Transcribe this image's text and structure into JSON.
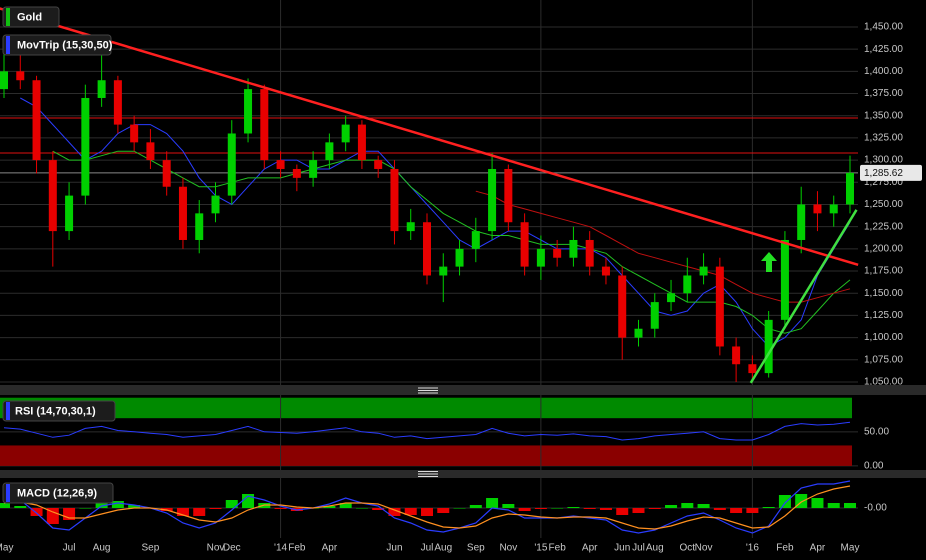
{
  "chart_data": [
    {
      "type": "candlestick",
      "label": "Gold",
      "ma_label": "MovTrip (15,30,50)",
      "open": [
        1380,
        1400,
        1390,
        1300,
        1220,
        1260,
        1370,
        1390,
        1340,
        1320,
        1300,
        1270,
        1210,
        1240,
        1260,
        1330,
        1380,
        1300,
        1290,
        1280,
        1300,
        1320,
        1340,
        1300,
        1290,
        1220,
        1230,
        1170,
        1180,
        1200,
        1220,
        1290,
        1230,
        1180,
        1200,
        1190,
        1210,
        1180,
        1170,
        1100,
        1110,
        1140,
        1150,
        1170,
        1180,
        1090,
        1070,
        1060,
        1120,
        1210,
        1250,
        1240,
        1250
      ],
      "high": [
        1420,
        1430,
        1395,
        1310,
        1275,
        1385,
        1420,
        1395,
        1350,
        1335,
        1310,
        1280,
        1255,
        1275,
        1345,
        1392,
        1385,
        1310,
        1295,
        1310,
        1330,
        1350,
        1345,
        1305,
        1300,
        1245,
        1240,
        1195,
        1210,
        1235,
        1308,
        1295,
        1240,
        1215,
        1210,
        1225,
        1220,
        1190,
        1180,
        1120,
        1150,
        1165,
        1190,
        1195,
        1190,
        1100,
        1080,
        1130,
        1220,
        1270,
        1265,
        1260,
        1305
      ],
      "low": [
        1370,
        1380,
        1285,
        1180,
        1210,
        1250,
        1360,
        1330,
        1310,
        1290,
        1260,
        1200,
        1195,
        1230,
        1250,
        1320,
        1290,
        1280,
        1265,
        1270,
        1290,
        1310,
        1290,
        1280,
        1205,
        1210,
        1160,
        1140,
        1170,
        1185,
        1210,
        1220,
        1170,
        1165,
        1180,
        1180,
        1170,
        1160,
        1075,
        1090,
        1100,
        1130,
        1140,
        1160,
        1080,
        1050,
        1050,
        1055,
        1110,
        1195,
        1220,
        1225,
        1240
      ],
      "close": [
        1400,
        1390,
        1300,
        1220,
        1260,
        1370,
        1390,
        1340,
        1320,
        1300,
        1270,
        1210,
        1240,
        1260,
        1330,
        1380,
        1300,
        1290,
        1280,
        1300,
        1320,
        1340,
        1300,
        1290,
        1220,
        1230,
        1170,
        1180,
        1200,
        1220,
        1290,
        1230,
        1180,
        1200,
        1190,
        1210,
        1180,
        1170,
        1100,
        1110,
        1140,
        1150,
        1170,
        1180,
        1090,
        1070,
        1060,
        1120,
        1210,
        1250,
        1240,
        1250,
        1285.62
      ],
      "up_color": "#00d000",
      "down_color": "#e80000",
      "overlays": [
        {
          "color": "#2a3cff",
          "values": [
            null,
            1370,
            1360,
            1340,
            1320,
            1300,
            1310,
            1330,
            1340,
            1340,
            1330,
            1310,
            1280,
            1260,
            1250,
            1270,
            1290,
            1300,
            1300,
            1290,
            1290,
            1300,
            1310,
            1310,
            1290,
            1270,
            1250,
            1230,
            1210,
            1200,
            1210,
            1220,
            1220,
            1210,
            1200,
            1200,
            1200,
            1190,
            1170,
            1150,
            1130,
            1125,
            1130,
            1150,
            1160,
            1140,
            1110,
            1090,
            1100,
            1120,
            1170,
            1200,
            1230
          ]
        },
        {
          "color": "#22c022",
          "values": [
            null,
            null,
            null,
            1310,
            1300,
            1300,
            1305,
            1310,
            1310,
            1300,
            1290,
            1280,
            1270,
            1270,
            1275,
            1280,
            1280,
            1280,
            1285,
            1290,
            1295,
            1300,
            1300,
            1300,
            1290,
            1270,
            1255,
            1240,
            1230,
            1220,
            1215,
            1215,
            1210,
            1205,
            1205,
            1205,
            1200,
            1195,
            1180,
            1170,
            1160,
            1150,
            1140,
            1140,
            1140,
            1135,
            1125,
            1110,
            1105,
            1110,
            1130,
            1150,
            1165
          ]
        },
        {
          "color": "#c01010",
          "values": [
            null,
            null,
            null,
            null,
            null,
            null,
            null,
            null,
            null,
            null,
            null,
            null,
            null,
            null,
            null,
            null,
            null,
            null,
            null,
            null,
            null,
            null,
            null,
            null,
            null,
            null,
            null,
            null,
            null,
            1265,
            1260,
            1250,
            1245,
            1240,
            1235,
            1230,
            1225,
            1215,
            1205,
            1195,
            1190,
            1185,
            1180,
            1175,
            1170,
            1160,
            1150,
            1145,
            1140,
            1140,
            1145,
            1150,
            1155
          ]
        }
      ],
      "trendlines": [
        {
          "color": "#ff2020",
          "from": [
            -0.3,
            1471
          ],
          "to": [
            52.5,
            1182
          ]
        },
        {
          "color": "#40e040",
          "from": [
            45.9,
            1049
          ],
          "to": [
            52.4,
            1244
          ]
        }
      ],
      "hlines": [
        {
          "value": 1347.5,
          "color": "#e01010"
        },
        {
          "value": 1308,
          "color": "#e01010"
        }
      ],
      "last_price": {
        "value": 1285.62,
        "label": "1,285.62"
      },
      "ylim": [
        1046.6,
        1480.4
      ],
      "yticks": [
        {
          "value": 1050,
          "label": "1,050.00"
        },
        {
          "value": 1075,
          "label": "1,075.00"
        },
        {
          "value": 1100,
          "label": "1,100.00"
        },
        {
          "value": 1125,
          "label": "1,125.00"
        },
        {
          "value": 1150,
          "label": "1,150.00"
        },
        {
          "value": 1175,
          "label": "1,175.00"
        },
        {
          "value": 1200,
          "label": "1,200.00"
        },
        {
          "value": 1225,
          "label": "1,225.00"
        },
        {
          "value": 1250,
          "label": "1,250.00"
        },
        {
          "value": 1275,
          "label": "1,275.00"
        },
        {
          "value": 1300,
          "label": "1,300.00"
        },
        {
          "value": 1325,
          "label": "1,325.00"
        },
        {
          "value": 1350,
          "label": "1,350.00"
        },
        {
          "value": 1375,
          "label": "1,375.00"
        },
        {
          "value": 1400,
          "label": "1,400.00"
        },
        {
          "value": 1425,
          "label": "1,425.00"
        },
        {
          "value": 1450,
          "label": "1,450.00"
        }
      ],
      "grid": true
    },
    {
      "type": "line",
      "label": "RSI (14,70,30,1)",
      "values": [
        56,
        54,
        48,
        42,
        45,
        55,
        58,
        52,
        50,
        48,
        46,
        42,
        44,
        46,
        52,
        58,
        50,
        49,
        48,
        50,
        53,
        56,
        50,
        48,
        42,
        44,
        40,
        42,
        44,
        46,
        55,
        48,
        44,
        46,
        45,
        47,
        44,
        43,
        38,
        40,
        44,
        46,
        48,
        50,
        40,
        38,
        38,
        46,
        58,
        62,
        60,
        61,
        64
      ],
      "color": "#2a3cff",
      "bands": [
        {
          "from": 70,
          "to": 100,
          "color": "#008a00"
        },
        {
          "from": 0,
          "to": 30,
          "color": "#8a0000"
        }
      ],
      "ylim": [
        -6,
        104
      ],
      "yticks": [
        {
          "value": 0,
          "label": "0.00"
        },
        {
          "value": 50,
          "label": "50.00"
        }
      ],
      "grid": true
    },
    {
      "type": "macd",
      "label": "MACD (12,26,9)",
      "categories": [
        "May",
        null,
        null,
        null,
        "Jul",
        null,
        "Aug",
        null,
        null,
        "Sep",
        null,
        null,
        null,
        "Nov",
        "Dec",
        null,
        null,
        "'14",
        "Feb",
        null,
        "Apr",
        null,
        null,
        null,
        "Jun",
        null,
        "Jul",
        "Aug",
        null,
        "Sep",
        null,
        "Nov",
        null,
        "'15",
        "Feb",
        null,
        "Apr",
        null,
        "Jun",
        "Jul",
        "Aug",
        null,
        "Oct",
        "Nov",
        null,
        null,
        "'16",
        null,
        "Feb",
        null,
        "Apr",
        null,
        "May"
      ],
      "macd": {
        "color": "#2a3cff",
        "values": [
          10,
          8,
          -5,
          -20,
          -22,
          -10,
          2,
          5,
          3,
          0,
          -5,
          -15,
          -20,
          -15,
          -2,
          12,
          8,
          2,
          -2,
          0,
          4,
          10,
          5,
          2,
          -10,
          -15,
          -22,
          -24,
          -20,
          -15,
          0,
          -2,
          -10,
          -10,
          -10,
          -8,
          -10,
          -12,
          -22,
          -25,
          -22,
          -15,
          -8,
          -5,
          -12,
          -20,
          -25,
          -18,
          5,
          20,
          24,
          24,
          27
        ]
      },
      "signal": {
        "color": "#ff9020",
        "values": [
          5,
          6,
          3,
          -4,
          -10,
          -10,
          -6,
          -2,
          0,
          0,
          -2,
          -7,
          -12,
          -14,
          -10,
          -2,
          3,
          3,
          1,
          0,
          2,
          5,
          5,
          4,
          -2,
          -8,
          -14,
          -19,
          -20,
          -18,
          -10,
          -6,
          -7,
          -9,
          -10,
          -9,
          -9,
          -10,
          -15,
          -20,
          -21,
          -18,
          -13,
          -9,
          -10,
          -15,
          -20,
          -19,
          -8,
          6,
          14,
          19,
          22
        ]
      },
      "histogram": [
        5,
        2,
        -8,
        -16,
        -12,
        0,
        8,
        7,
        3,
        0,
        -3,
        -8,
        -8,
        -1,
        8,
        14,
        5,
        -1,
        -3,
        0,
        2,
        5,
        0,
        -2,
        -8,
        -7,
        -8,
        -5,
        0,
        3,
        10,
        4,
        -3,
        -1,
        0,
        1,
        -1,
        -2,
        -7,
        -5,
        -1,
        3,
        5,
        4,
        -2,
        -5,
        -5,
        1,
        13,
        14,
        10,
        5,
        5
      ],
      "up_color": "#00d000",
      "down_color": "#e80000",
      "ylim": [
        -30,
        30
      ],
      "yticks": [
        {
          "value": 0,
          "label": "-0.00"
        }
      ],
      "grid": true
    }
  ]
}
